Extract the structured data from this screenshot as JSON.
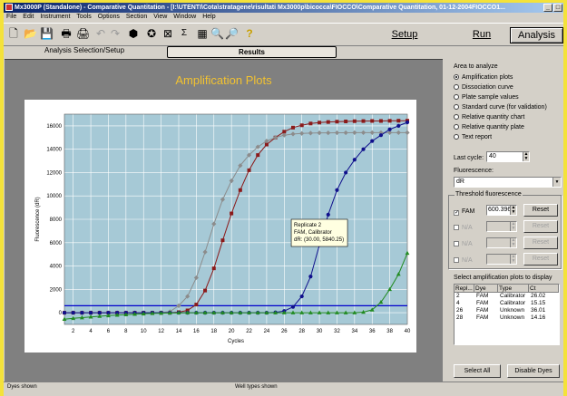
{
  "window": {
    "title": "Mx3000P (Standalone) - Comparative Quantitation - [I:\\UTENTI\\Cota\\stratagene\\risultati Mx3000p\\bicocca\\FIOCCO\\Comparative Quantitation, 01-12-2004FIOCCO1..."
  },
  "menu": [
    "File",
    "Edit",
    "Instrument",
    "Tools",
    "Options",
    "Section",
    "View",
    "Window",
    "Help"
  ],
  "toolbar": {
    "tabs": [
      {
        "label": "Setup"
      },
      {
        "label": "Run"
      },
      {
        "label": "Analysis",
        "active": true
      }
    ]
  },
  "subtabs": {
    "analysis_selection": "Analysis Selection/Setup",
    "results": "Results"
  },
  "plot": {
    "title": "Amplification Plots",
    "tooltip": {
      "line1": "Replicate 2",
      "line2": "FAM, Calibrator",
      "line3": "dR: (30.00, 5840.25)"
    }
  },
  "chart_data": {
    "type": "line",
    "title": "Amplification Plots",
    "xlabel": "Cycles",
    "ylabel": "Fluorescence (dR)",
    "xlim": [
      1,
      40
    ],
    "ylim": [
      -1000,
      17000
    ],
    "xticks": [
      2,
      4,
      6,
      8,
      10,
      12,
      14,
      16,
      18,
      20,
      22,
      24,
      26,
      28,
      30,
      32,
      34,
      36,
      38,
      40
    ],
    "yticks": [
      0,
      2000,
      4000,
      6000,
      8000,
      10000,
      12000,
      14000,
      16000
    ],
    "threshold": 600.396,
    "grid": true,
    "colors": {
      "background": "#a6c9d6",
      "gridline": "#ffffff",
      "threshold": "#0000cc"
    },
    "series": [
      {
        "color": "#8b1a1a",
        "marker": "square",
        "x": [
          1,
          2,
          3,
          4,
          5,
          6,
          7,
          8,
          9,
          10,
          11,
          12,
          13,
          14,
          15,
          16,
          17,
          18,
          19,
          20,
          21,
          22,
          23,
          24,
          25,
          26,
          27,
          28,
          29,
          30,
          31,
          32,
          33,
          34,
          35,
          36,
          37,
          38,
          39,
          40
        ],
        "values": [
          0,
          0,
          0,
          0,
          0,
          0,
          0,
          0,
          0,
          0,
          0,
          0,
          0,
          50,
          200,
          700,
          1900,
          3800,
          6200,
          8500,
          10500,
          12200,
          13500,
          14400,
          15000,
          15500,
          15850,
          16050,
          16200,
          16280,
          16330,
          16360,
          16380,
          16400,
          16410,
          16420,
          16420,
          16430,
          16440,
          16440
        ]
      },
      {
        "color": "#8c8c8c",
        "marker": "diamond",
        "x": [
          1,
          2,
          3,
          4,
          5,
          6,
          7,
          8,
          9,
          10,
          11,
          12,
          13,
          14,
          15,
          16,
          17,
          18,
          19,
          20,
          21,
          22,
          23,
          24,
          25,
          26,
          27,
          28,
          29,
          30,
          31,
          32,
          33,
          34,
          35,
          36,
          37,
          38,
          39,
          40
        ],
        "values": [
          0,
          0,
          0,
          0,
          0,
          0,
          0,
          0,
          0,
          0,
          0,
          0,
          100,
          600,
          1400,
          3000,
          5200,
          7600,
          9700,
          11300,
          12600,
          13500,
          14200,
          14700,
          15000,
          15200,
          15300,
          15350,
          15380,
          15400,
          15400,
          15410,
          15410,
          15420,
          15420,
          15420,
          15420,
          15420,
          15420,
          15420
        ]
      },
      {
        "color": "#10108c",
        "marker": "circle",
        "x": [
          1,
          2,
          3,
          4,
          5,
          6,
          7,
          8,
          9,
          10,
          11,
          12,
          13,
          14,
          15,
          16,
          17,
          18,
          19,
          20,
          21,
          22,
          23,
          24,
          25,
          26,
          27,
          28,
          29,
          30,
          31,
          32,
          33,
          34,
          35,
          36,
          37,
          38,
          39,
          40
        ],
        "values": [
          0,
          0,
          0,
          0,
          0,
          0,
          0,
          0,
          0,
          0,
          0,
          0,
          0,
          0,
          0,
          0,
          0,
          0,
          0,
          0,
          0,
          0,
          0,
          0,
          30,
          150,
          500,
          1400,
          3100,
          5800,
          8400,
          10500,
          12000,
          13100,
          14000,
          14700,
          15200,
          15700,
          16000,
          16300
        ]
      },
      {
        "color": "#228b22",
        "marker": "triangle",
        "x": [
          1,
          2,
          3,
          4,
          5,
          6,
          7,
          8,
          9,
          10,
          11,
          12,
          13,
          14,
          15,
          16,
          17,
          18,
          19,
          20,
          21,
          22,
          23,
          24,
          25,
          26,
          27,
          28,
          29,
          30,
          31,
          32,
          33,
          34,
          35,
          36,
          37,
          38,
          39,
          40
        ],
        "values": [
          -550,
          -480,
          -420,
          -360,
          -300,
          -250,
          -200,
          -160,
          -120,
          -90,
          -60,
          -40,
          -20,
          -10,
          0,
          0,
          0,
          0,
          0,
          0,
          0,
          0,
          0,
          0,
          0,
          0,
          0,
          0,
          0,
          0,
          0,
          0,
          0,
          0,
          50,
          250,
          900,
          2000,
          3300,
          5100
        ]
      }
    ]
  },
  "side": {
    "area_label": "Area to analyze",
    "options": [
      {
        "label": "Amplification plots",
        "selected": true
      },
      {
        "label": "Dissociation curve"
      },
      {
        "label": "Plate sample values"
      },
      {
        "label": "Standard curve (for validation)"
      },
      {
        "label": "Relative quantity chart"
      },
      {
        "label": "Relative quantity plate"
      },
      {
        "label": "Text report"
      }
    ],
    "last_cycle_label": "Last cycle:",
    "last_cycle_value": "40",
    "fluorescence_label": "Fluorescence:",
    "fluorescence_value": "dR",
    "threshold_label": "Threshold fluorescence",
    "thresholds": [
      {
        "label": "FAM",
        "checked": true,
        "value": "600.396"
      },
      {
        "label": "N/A",
        "checked": false,
        "value": ""
      },
      {
        "label": "N/A",
        "checked": false,
        "value": ""
      },
      {
        "label": "N/A",
        "checked": false,
        "value": ""
      }
    ],
    "reset_label": "Reset",
    "select_label": "Select amplification plots to display",
    "table": {
      "headers": [
        "Repl...",
        "Dye",
        "Type",
        "Ct"
      ],
      "rows": [
        [
          "2",
          "FAM",
          "Calibrator",
          "26.02"
        ],
        [
          "4",
          "FAM",
          "Calibrator",
          "15.15"
        ],
        [
          "26",
          "FAM",
          "Unknown",
          "36.01"
        ],
        [
          "28",
          "FAM",
          "Unknown",
          "14.16"
        ]
      ]
    },
    "select_all": "Select All",
    "disable_dyes": "Disable Dyes"
  },
  "bottom": {
    "dyes_shown": "Dyes shown",
    "well_types_shown": "Well types shown"
  }
}
